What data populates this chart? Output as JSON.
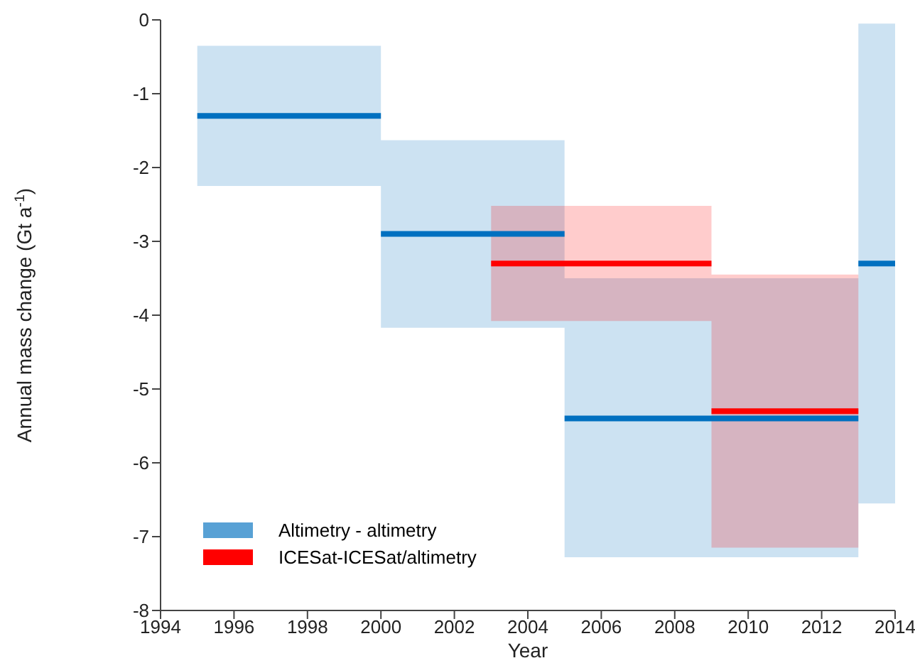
{
  "chart_data": {
    "type": "line",
    "xlabel": "Year",
    "ylabel": "Annual mass change (Gt a$^{-1}$)",
    "xlim": [
      1994,
      2014
    ],
    "xticks": [
      1994,
      1996,
      1998,
      2000,
      2002,
      2004,
      2006,
      2008,
      2010,
      2012,
      2014
    ],
    "ylim": [
      -8,
      0
    ],
    "yticks": [
      -8,
      -7,
      -6,
      -5,
      -4,
      -3,
      -2,
      -1,
      0
    ],
    "legend": "bottom left",
    "marker": "none",
    "line_style": "solid",
    "series": [
      {
        "name": "Altimetry - altimetry",
        "color": "#0070c0",
        "x": [
          1995,
          2000,
          2000,
          2005,
          2005,
          2013,
          2013,
          2014
        ],
        "values": [
          -1.3,
          -1.3,
          -2.9,
          -2.9,
          -5.4,
          -5.4,
          -3.3,
          -3.3
        ],
        "lower": [
          -2.25,
          -2.25,
          -4.17,
          -4.17,
          -7.28,
          -7.28,
          -6.55,
          -6.55
        ],
        "upper": [
          -0.35,
          -0.35,
          -1.63,
          -1.63,
          -3.5,
          -3.5,
          -0.05,
          -0.05
        ]
      },
      {
        "name": "ICESat-ICESat/altimetry",
        "color": "#ff0000",
        "x": [
          2003,
          2009,
          2009,
          2013
        ],
        "values": [
          -3.3,
          -3.3,
          -5.3,
          -5.3
        ],
        "lower": [
          -4.08,
          -4.08,
          -7.15,
          -7.15
        ],
        "upper": [
          -2.52,
          -2.52,
          -3.45,
          -3.45
        ]
      }
    ]
  }
}
